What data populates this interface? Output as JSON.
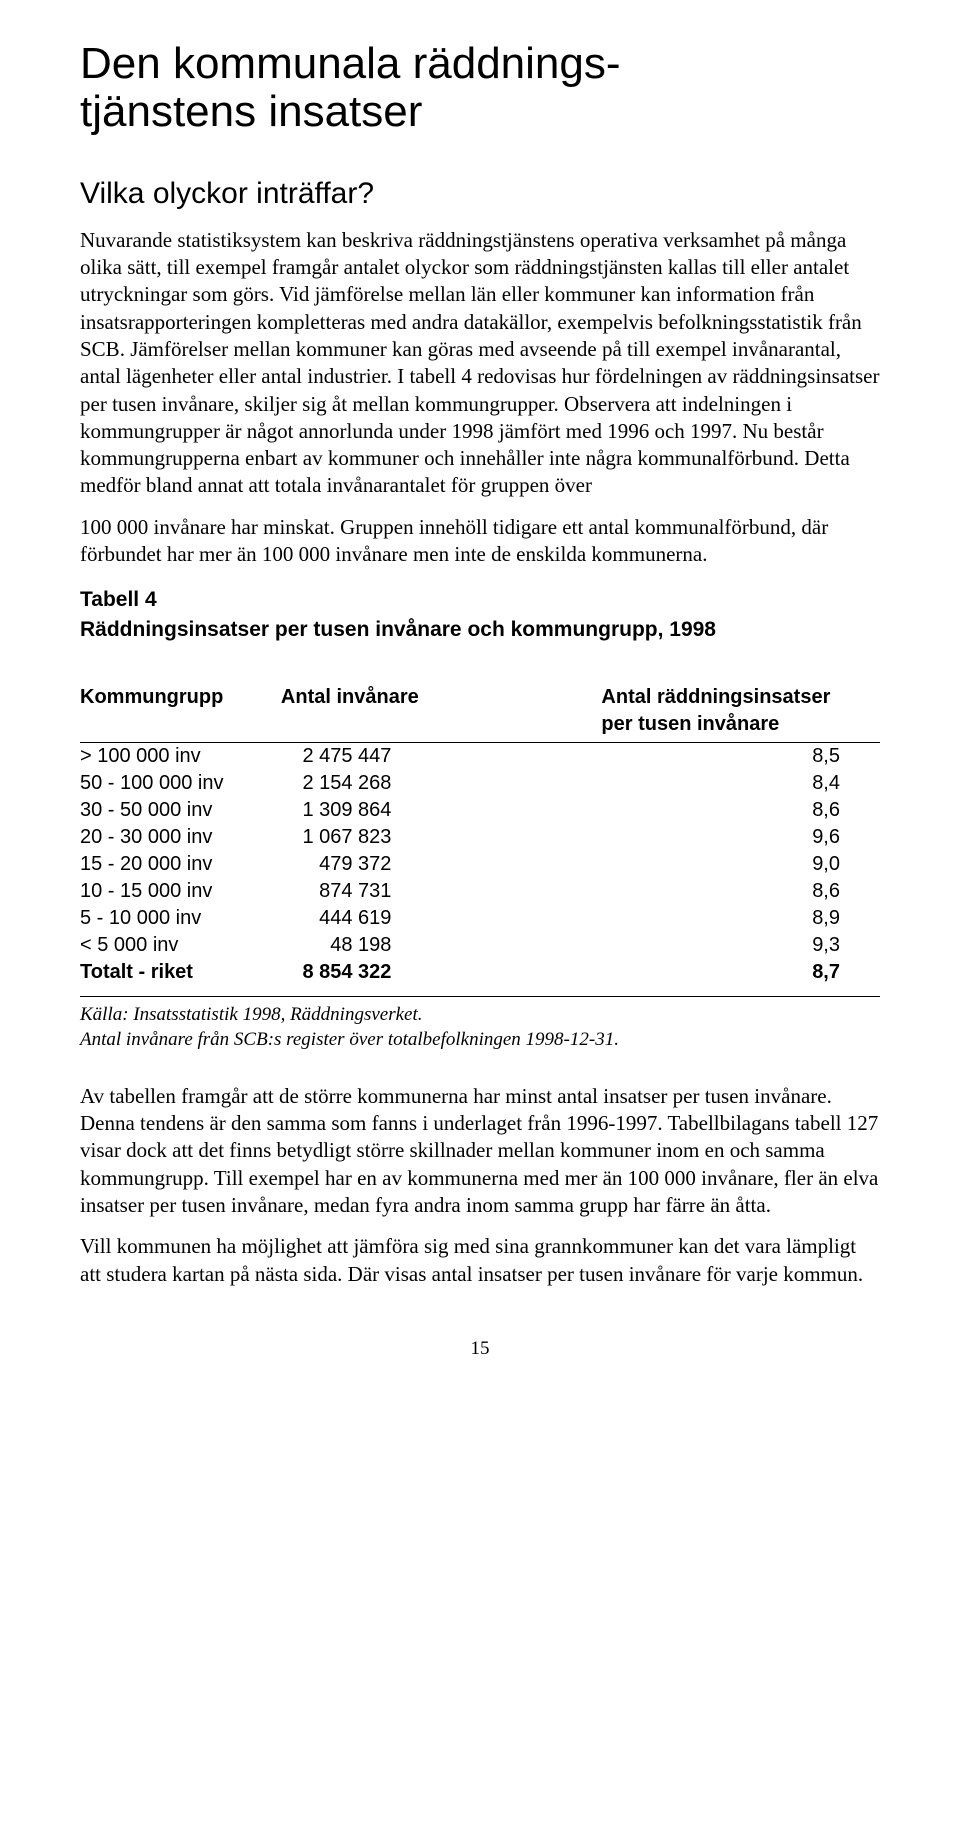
{
  "title_line1": "Den kommunala räddnings-",
  "title_line2": "tjänstens insatser",
  "subtitle": "Vilka olyckor inträffar?",
  "para1": "Nuvarande statistiksystem kan beskriva räddningstjänstens operativa verksamhet på många olika sätt, till exempel framgår antalet olyckor som räddningstjänsten kallas till eller antalet utryckningar som görs. Vid jämförelse mellan län eller kommuner kan information från insatsrapporteringen kompletteras med andra datakällor, exempelvis befolkningsstatistik från SCB. Jämförelser mellan kommuner kan göras med avseende på till exempel invånarantal, antal lägenheter eller antal industrier. I tabell 4 redovisas hur fördelningen av räddningsinsatser per tusen invånare, skiljer sig åt mellan kommungrupper. Observera att indelningen i kommungrupper är något annorlunda under 1998 jämfört med 1996 och 1997. Nu består kommungrupperna enbart av kommuner och innehåller inte några kommunalförbund. Detta medför bland annat att totala invånarantalet för gruppen över",
  "para2": "100 000 invånare har minskat. Gruppen innehöll tidigare ett antal kommunalförbund, där förbundet har mer än 100 000 invånare men inte de enskilda kommunerna.",
  "table_label": "Tabell 4",
  "table_title": "Räddningsinsatser per tusen invånare och kommungrupp, 1998",
  "table": {
    "col1": "Kommungrupp",
    "col2": "Antal invånare",
    "col3a": "Antal räddningsinsatser",
    "col3b": "per tusen invånare",
    "rows": [
      {
        "grp": "> 100 000 inv",
        "inv": "2 475 447",
        "rate": "8,5"
      },
      {
        "grp": "50 - 100 000 inv",
        "inv": "2 154 268",
        "rate": "8,4"
      },
      {
        "grp": "30 - 50 000 inv",
        "inv": "1 309 864",
        "rate": "8,6"
      },
      {
        "grp": "20 - 30 000 inv",
        "inv": "1 067 823",
        "rate": "9,6"
      },
      {
        "grp": "15 - 20 000 inv",
        "inv": "479 372",
        "rate": "9,0"
      },
      {
        "grp": "10 - 15 000 inv",
        "inv": "874 731",
        "rate": "8,6"
      },
      {
        "grp": "5 - 10 000 inv",
        "inv": "444 619",
        "rate": "8,9"
      },
      {
        "grp": "<  5 000 inv",
        "inv": "48 198",
        "rate": "9,3"
      }
    ],
    "total": {
      "grp": "Totalt - riket",
      "inv": "8 854 322",
      "rate": "8,7"
    }
  },
  "source_line1": "Källa: Insatsstatistik 1998, Räddningsverket.",
  "source_line2": "Antal invånare från SCB:s register över totalbefolkningen 1998-12-31.",
  "para3": "Av tabellen framgår att de större kommunerna har minst antal insatser per tusen invånare. Denna tendens är den samma som fanns i underlaget från 1996-1997. Tabellbilagans tabell 127 visar dock att det finns betydligt större skillnader mellan kommuner inom en och samma kommungrupp. Till exempel har en av kommunerna med mer än 100 000 invånare, fler än elva insatser per tusen invånare, medan fyra andra inom samma grupp har färre än åtta.",
  "para4": "Vill kommunen ha möjlighet att jämföra sig med sina grannkommuner kan det vara lämpligt att studera kartan på nästa sida. Där visas antal insatser per tusen invånare för varje kommun.",
  "page_number": "15"
}
